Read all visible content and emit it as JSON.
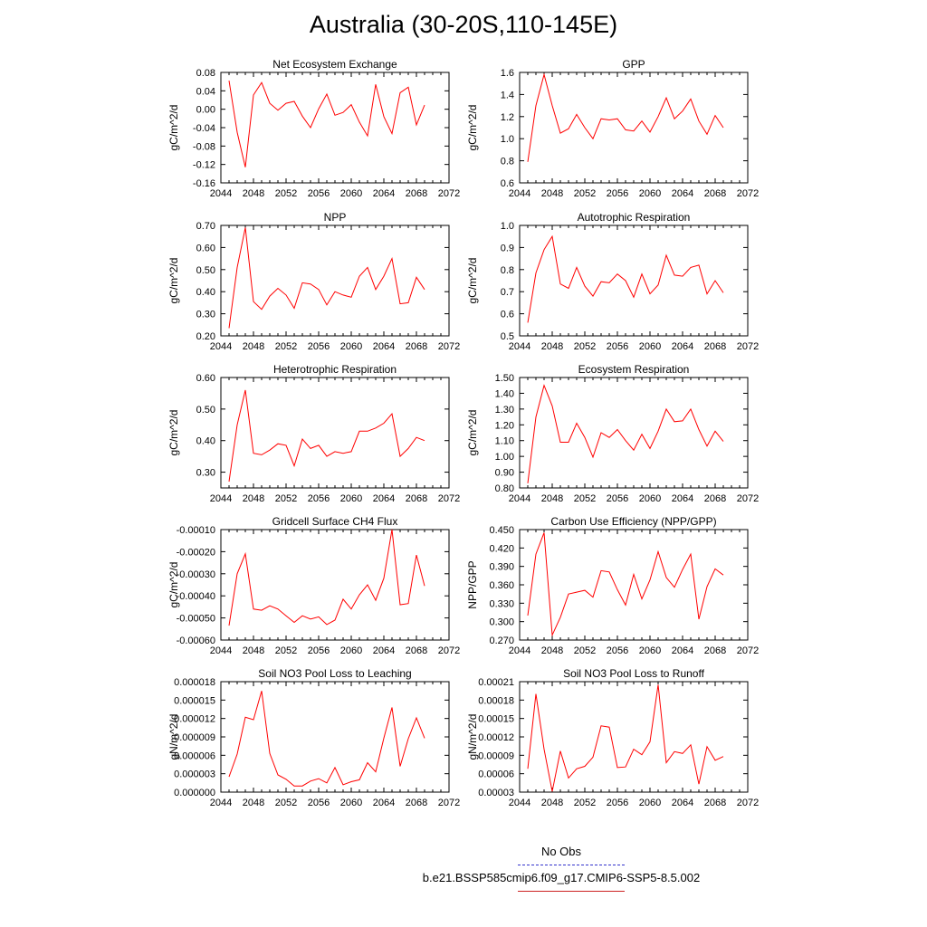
{
  "title": "Australia (30-20S,110-145E)",
  "legend": {
    "obs_label": "No Obs",
    "model_label": "b.e21.BSSP585cmip6.f09_g17.CMIP6-SSP5-8.5.002",
    "obs_color": "#3333cc",
    "model_color": "#ff0000"
  },
  "chart_data": [
    {
      "type": "line",
      "title": "Net Ecosystem Exchange",
      "ylabel": "gC/m^2/d",
      "xlim": [
        2044,
        2072
      ],
      "xticks": [
        "2044",
        "2048",
        "2052",
        "2056",
        "2060",
        "2064",
        "2068",
        "2072"
      ],
      "ylim": [
        -0.16,
        0.08
      ],
      "yticks": [
        "-0.16",
        "-0.12",
        "-0.08",
        "-0.04",
        "0.00",
        "0.04",
        "0.08"
      ],
      "x": [
        2045,
        2046,
        2047,
        2048,
        2049,
        2050,
        2051,
        2052,
        2053,
        2054,
        2055,
        2056,
        2057,
        2058,
        2059,
        2060,
        2061,
        2062,
        2063,
        2064,
        2065,
        2066,
        2067,
        2068,
        2069
      ],
      "y": [
        0.062,
        -0.05,
        -0.126,
        0.031,
        0.058,
        0.013,
        -0.002,
        0.013,
        0.017,
        -0.015,
        -0.04,
        0.001,
        0.033,
        -0.013,
        -0.007,
        0.01,
        -0.028,
        -0.058,
        0.054,
        -0.016,
        -0.053,
        0.036,
        0.048,
        -0.034,
        0.009
      ]
    },
    {
      "type": "line",
      "title": "GPP",
      "ylabel": "gC/m^2/d",
      "xlim": [
        2044,
        2072
      ],
      "xticks": [
        "2044",
        "2048",
        "2052",
        "2056",
        "2060",
        "2064",
        "2068",
        "2072"
      ],
      "ylim": [
        0.6,
        1.6
      ],
      "yticks": [
        "0.6",
        "0.8",
        "1.0",
        "1.2",
        "1.4",
        "1.6"
      ],
      "x": [
        2045,
        2046,
        2047,
        2048,
        2049,
        2050,
        2051,
        2052,
        2053,
        2054,
        2055,
        2056,
        2057,
        2058,
        2059,
        2060,
        2061,
        2062,
        2063,
        2064,
        2065,
        2066,
        2067,
        2068,
        2069
      ],
      "y": [
        0.79,
        1.3,
        1.58,
        1.3,
        1.05,
        1.09,
        1.22,
        1.1,
        1.0,
        1.18,
        1.17,
        1.18,
        1.08,
        1.07,
        1.16,
        1.06,
        1.2,
        1.37,
        1.18,
        1.25,
        1.36,
        1.16,
        1.04,
        1.21,
        1.1
      ]
    },
    {
      "type": "line",
      "title": "NPP",
      "ylabel": "gC/m^2/d",
      "xlim": [
        2044,
        2072
      ],
      "xticks": [
        "2044",
        "2048",
        "2052",
        "2056",
        "2060",
        "2064",
        "2068",
        "2072"
      ],
      "ylim": [
        0.2,
        0.7
      ],
      "yticks": [
        "0.20",
        "0.30",
        "0.40",
        "0.50",
        "0.60",
        "0.70"
      ],
      "x": [
        2045,
        2046,
        2047,
        2048,
        2049,
        2050,
        2051,
        2052,
        2053,
        2054,
        2055,
        2056,
        2057,
        2058,
        2059,
        2060,
        2061,
        2062,
        2063,
        2064,
        2065,
        2066,
        2067,
        2068,
        2069
      ],
      "y": [
        0.235,
        0.51,
        0.69,
        0.355,
        0.32,
        0.38,
        0.415,
        0.385,
        0.325,
        0.44,
        0.435,
        0.41,
        0.34,
        0.4,
        0.385,
        0.375,
        0.47,
        0.51,
        0.41,
        0.47,
        0.55,
        0.345,
        0.35,
        0.465,
        0.41
      ]
    },
    {
      "type": "line",
      "title": "Autotrophic Respiration",
      "ylabel": "gC/m^2/d",
      "xlim": [
        2044,
        2072
      ],
      "xticks": [
        "2044",
        "2048",
        "2052",
        "2056",
        "2060",
        "2064",
        "2068",
        "2072"
      ],
      "ylim": [
        0.5,
        1.0
      ],
      "yticks": [
        "0.5",
        "0.6",
        "0.7",
        "0.8",
        "0.9",
        "1.0"
      ],
      "x": [
        2045,
        2046,
        2047,
        2048,
        2049,
        2050,
        2051,
        2052,
        2053,
        2054,
        2055,
        2056,
        2057,
        2058,
        2059,
        2060,
        2061,
        2062,
        2063,
        2064,
        2065,
        2066,
        2067,
        2068,
        2069
      ],
      "y": [
        0.56,
        0.785,
        0.89,
        0.95,
        0.735,
        0.715,
        0.81,
        0.725,
        0.68,
        0.745,
        0.74,
        0.78,
        0.75,
        0.675,
        0.78,
        0.69,
        0.73,
        0.865,
        0.775,
        0.77,
        0.81,
        0.82,
        0.69,
        0.75,
        0.695
      ]
    },
    {
      "type": "line",
      "title": "Heterotrophic Respiration",
      "ylabel": "gC/m^2/d",
      "xlim": [
        2044,
        2072
      ],
      "xticks": [
        "2044",
        "2048",
        "2052",
        "2056",
        "2060",
        "2064",
        "2068",
        "2072"
      ],
      "ylim": [
        0.25,
        0.6
      ],
      "yticks": [
        "0.30",
        "0.40",
        "0.50",
        "0.60"
      ],
      "x": [
        2045,
        2046,
        2047,
        2048,
        2049,
        2050,
        2051,
        2052,
        2053,
        2054,
        2055,
        2056,
        2057,
        2058,
        2059,
        2060,
        2061,
        2062,
        2063,
        2064,
        2065,
        2066,
        2067,
        2068,
        2069
      ],
      "y": [
        0.27,
        0.45,
        0.56,
        0.36,
        0.355,
        0.37,
        0.39,
        0.385,
        0.32,
        0.405,
        0.375,
        0.385,
        0.35,
        0.365,
        0.36,
        0.365,
        0.43,
        0.43,
        0.44,
        0.455,
        0.485,
        0.35,
        0.375,
        0.41,
        0.4
      ]
    },
    {
      "type": "line",
      "title": "Ecosystem Respiration",
      "ylabel": "gC/m^2/d",
      "xlim": [
        2044,
        2072
      ],
      "xticks": [
        "2044",
        "2048",
        "2052",
        "2056",
        "2060",
        "2064",
        "2068",
        "2072"
      ],
      "ylim": [
        0.8,
        1.5
      ],
      "yticks": [
        "0.80",
        "0.90",
        "1.00",
        "1.10",
        "1.20",
        "1.30",
        "1.40",
        "1.50"
      ],
      "x": [
        2045,
        2046,
        2047,
        2048,
        2049,
        2050,
        2051,
        2052,
        2053,
        2054,
        2055,
        2056,
        2057,
        2058,
        2059,
        2060,
        2061,
        2062,
        2063,
        2064,
        2065,
        2066,
        2067,
        2068,
        2069
      ],
      "y": [
        0.83,
        1.25,
        1.45,
        1.32,
        1.09,
        1.09,
        1.21,
        1.12,
        0.995,
        1.15,
        1.12,
        1.17,
        1.1,
        1.04,
        1.14,
        1.05,
        1.16,
        1.3,
        1.22,
        1.225,
        1.3,
        1.17,
        1.065,
        1.16,
        1.095
      ]
    },
    {
      "type": "line",
      "title": "Gridcell Surface CH4 Flux",
      "ylabel": "gC/m^2/d",
      "xlim": [
        2044,
        2072
      ],
      "xticks": [
        "2044",
        "2048",
        "2052",
        "2056",
        "2060",
        "2064",
        "2068",
        "2072"
      ],
      "ylim": [
        -0.0006,
        -0.0001
      ],
      "yticks": [
        "-0.00060",
        "-0.00050",
        "-0.00040",
        "-0.00030",
        "-0.00020",
        "-0.00010"
      ],
      "x": [
        2045,
        2046,
        2047,
        2048,
        2049,
        2050,
        2051,
        2052,
        2053,
        2054,
        2055,
        2056,
        2057,
        2058,
        2059,
        2060,
        2061,
        2062,
        2063,
        2064,
        2065,
        2066,
        2067,
        2068,
        2069
      ],
      "y": [
        -0.000535,
        -0.0003,
        -0.00021,
        -0.00046,
        -0.000465,
        -0.000445,
        -0.00046,
        -0.00049,
        -0.00052,
        -0.00049,
        -0.000505,
        -0.000495,
        -0.00053,
        -0.00051,
        -0.000415,
        -0.00046,
        -0.000395,
        -0.00035,
        -0.00042,
        -0.00032,
        -0.0001,
        -0.00044,
        -0.000435,
        -0.000215,
        -0.000355
      ]
    },
    {
      "type": "line",
      "title": "Carbon Use Efficiency (NPP/GPP)",
      "ylabel": "NPP/GPP",
      "xlim": [
        2044,
        2072
      ],
      "xticks": [
        "2044",
        "2048",
        "2052",
        "2056",
        "2060",
        "2064",
        "2068",
        "2072"
      ],
      "ylim": [
        0.27,
        0.45
      ],
      "yticks": [
        "0.270",
        "0.300",
        "0.330",
        "0.360",
        "0.390",
        "0.420",
        "0.450"
      ],
      "x": [
        2045,
        2046,
        2047,
        2048,
        2049,
        2050,
        2051,
        2052,
        2053,
        2054,
        2055,
        2056,
        2057,
        2058,
        2059,
        2060,
        2061,
        2062,
        2063,
        2064,
        2065,
        2066,
        2067,
        2068,
        2069
      ],
      "y": [
        0.31,
        0.41,
        0.445,
        0.278,
        0.307,
        0.345,
        0.348,
        0.351,
        0.34,
        0.383,
        0.381,
        0.352,
        0.327,
        0.377,
        0.337,
        0.368,
        0.414,
        0.372,
        0.356,
        0.385,
        0.41,
        0.304,
        0.357,
        0.386,
        0.376
      ]
    },
    {
      "type": "line",
      "title": "Soil NO3 Pool Loss to Leaching",
      "ylabel": "gN/m^2/d",
      "xlim": [
        2044,
        2072
      ],
      "xticks": [
        "2044",
        "2048",
        "2052",
        "2056",
        "2060",
        "2064",
        "2068",
        "2072"
      ],
      "ylim": [
        0,
        1.8e-05
      ],
      "yticks": [
        "0.000000",
        "0.000003",
        "0.000006",
        "0.000009",
        "0.000012",
        "0.000015",
        "0.000018"
      ],
      "x": [
        2045,
        2046,
        2047,
        2048,
        2049,
        2050,
        2051,
        2052,
        2053,
        2054,
        2055,
        2056,
        2057,
        2058,
        2059,
        2060,
        2061,
        2062,
        2063,
        2064,
        2065,
        2066,
        2067,
        2068,
        2069
      ],
      "y": [
        2.5e-06,
        6.2e-06,
        1.22e-05,
        1.18e-05,
        1.65e-05,
        6.3e-06,
        2.8e-06,
        2.1e-06,
        1e-06,
        1e-06,
        1.8e-06,
        2.2e-06,
        1.5e-06,
        4e-06,
        1.2e-06,
        1.7e-06,
        2e-06,
        4.8e-06,
        3.3e-06,
        8.8e-06,
        1.38e-05,
        4.2e-06,
        8.7e-06,
        1.21e-05,
        8.8e-06
      ]
    },
    {
      "type": "line",
      "title": "Soil NO3 Pool Loss to Runoff",
      "ylabel": "gN/m^2/d",
      "xlim": [
        2044,
        2072
      ],
      "xticks": [
        "2044",
        "2048",
        "2052",
        "2056",
        "2060",
        "2064",
        "2068",
        "2072"
      ],
      "ylim": [
        3e-05,
        0.00021
      ],
      "yticks": [
        "0.00003",
        "0.00006",
        "0.00009",
        "0.00012",
        "0.00015",
        "0.00018",
        "0.00021"
      ],
      "x": [
        2045,
        2046,
        2047,
        2048,
        2049,
        2050,
        2051,
        2052,
        2053,
        2054,
        2055,
        2056,
        2057,
        2058,
        2059,
        2060,
        2061,
        2062,
        2063,
        2064,
        2065,
        2066,
        2067,
        2068,
        2069
      ],
      "y": [
        6.8e-05,
        0.00019,
        0.0001,
        3.1e-05,
        9.7e-05,
        5.3e-05,
        6.8e-05,
        7.2e-05,
        8.7e-05,
        0.000138,
        0.000136,
        7e-05,
        7.1e-05,
        0.0001,
        9.1e-05,
        0.000112,
        0.000205,
        7.8e-05,
        9.6e-05,
        9.3e-05,
        0.000107,
        4.3e-05,
        0.000104,
        8.2e-05,
        8.8e-05
      ]
    }
  ]
}
